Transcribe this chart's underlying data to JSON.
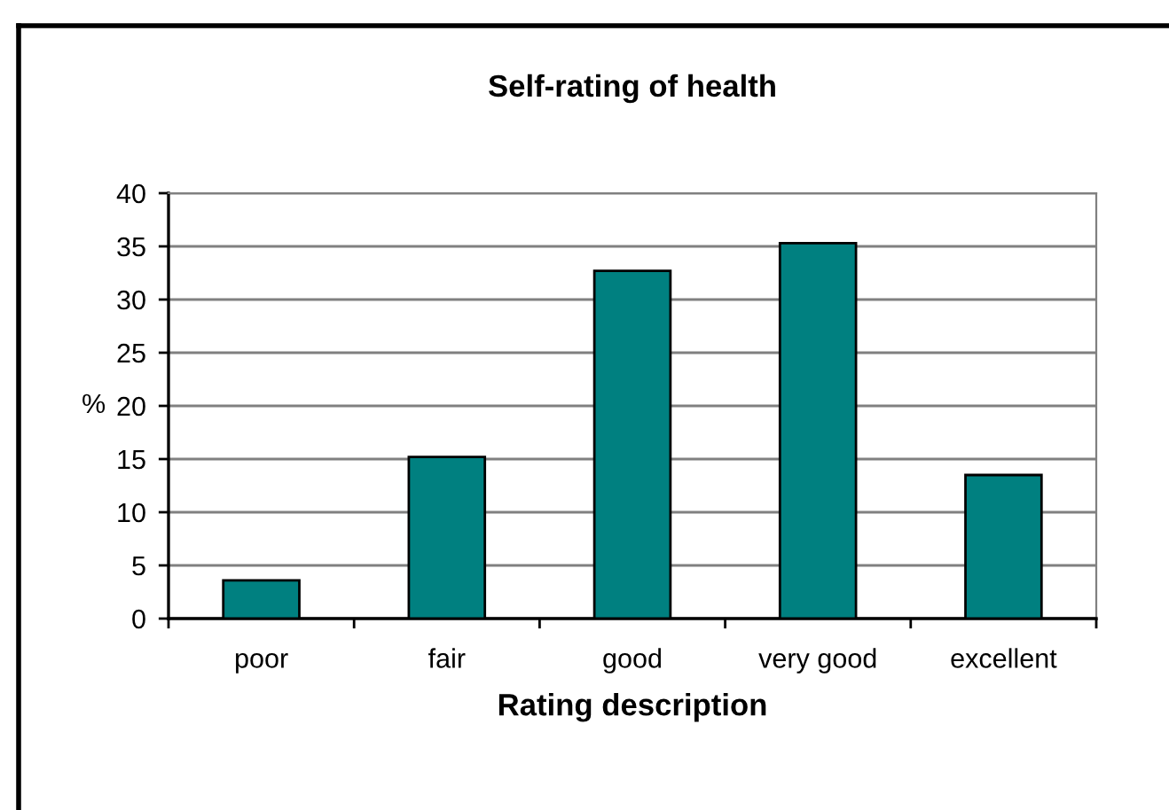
{
  "chart_data": {
    "type": "bar",
    "title": "Self-rating of health",
    "xlabel": "Rating description",
    "ylabel": "%",
    "categories": [
      "poor",
      "fair",
      "good",
      "very good",
      "excellent"
    ],
    "values": [
      3.6,
      15.2,
      32.7,
      35.3,
      13.5
    ],
    "color": "#008080",
    "ylim": [
      0,
      40
    ],
    "yticks": [
      0,
      5,
      10,
      15,
      20,
      25,
      30,
      35,
      40
    ],
    "grid": "y"
  }
}
